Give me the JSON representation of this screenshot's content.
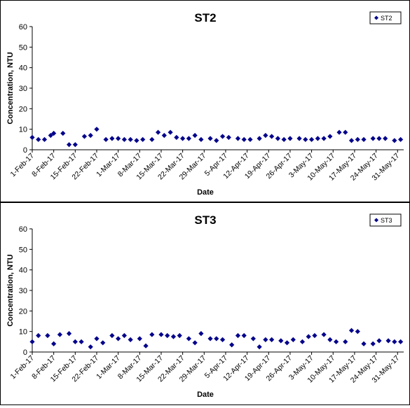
{
  "chart_data": [
    {
      "type": "scatter",
      "title": "ST2",
      "xlabel": "Date",
      "ylabel": "Concentration, NTU",
      "ylim": [
        0,
        60
      ],
      "yticks": [
        "0",
        "10",
        "20",
        "30",
        "40",
        "50",
        "60"
      ],
      "xlim": [
        "2017-02-01",
        "2017-06-02"
      ],
      "xtick_dates": [
        "2017-02-01",
        "2017-02-08",
        "2017-02-15",
        "2017-02-22",
        "2017-03-01",
        "2017-03-08",
        "2017-03-15",
        "2017-03-22",
        "2017-03-29",
        "2017-04-05",
        "2017-04-12",
        "2017-04-19",
        "2017-04-26",
        "2017-05-03",
        "2017-05-10",
        "2017-05-17",
        "2017-05-24",
        "2017-05-31"
      ],
      "xtick_labels": [
        "1-Feb-17",
        "8-Feb-17",
        "15-Feb-17",
        "22-Feb-17",
        "1-Mar-17",
        "8-Mar-17",
        "15-Mar-17",
        "22-Mar-17",
        "29-Mar-17",
        "5-Apr-17",
        "12-Apr-17",
        "19-Apr-17",
        "26-Apr-17",
        "3-May-17",
        "10-May-17",
        "17-May-17",
        "24-May-17",
        "31-May-17"
      ],
      "legend": {
        "position": "top-right",
        "entries": [
          "ST2"
        ]
      },
      "marker_color": "#00008B",
      "grid": false,
      "series": [
        {
          "name": "ST2",
          "x": [
            "2017-02-01",
            "2017-02-03",
            "2017-02-05",
            "2017-02-07",
            "2017-02-08",
            "2017-02-11",
            "2017-02-13",
            "2017-02-15",
            "2017-02-18",
            "2017-02-20",
            "2017-02-22",
            "2017-02-25",
            "2017-02-27",
            "2017-03-01",
            "2017-03-03",
            "2017-03-05",
            "2017-03-07",
            "2017-03-09",
            "2017-03-12",
            "2017-03-14",
            "2017-03-16",
            "2017-03-18",
            "2017-03-20",
            "2017-03-22",
            "2017-03-24",
            "2017-03-26",
            "2017-03-28",
            "2017-03-31",
            "2017-04-02",
            "2017-04-04",
            "2017-04-06",
            "2017-04-09",
            "2017-04-11",
            "2017-04-13",
            "2017-04-16",
            "2017-04-18",
            "2017-04-20",
            "2017-04-22",
            "2017-04-24",
            "2017-04-26",
            "2017-04-29",
            "2017-05-01",
            "2017-05-03",
            "2017-05-05",
            "2017-05-07",
            "2017-05-09",
            "2017-05-12",
            "2017-05-14",
            "2017-05-16",
            "2017-05-18",
            "2017-05-20",
            "2017-05-23",
            "2017-05-25",
            "2017-05-27",
            "2017-05-30",
            "2017-06-01"
          ],
          "y": [
            6.0,
            5.0,
            5.0,
            7.0,
            8.0,
            8.0,
            2.5,
            2.5,
            6.5,
            7.0,
            10.0,
            5.0,
            5.5,
            5.5,
            5.0,
            5.0,
            4.5,
            5.0,
            5.0,
            8.5,
            7.0,
            8.5,
            6.0,
            5.5,
            5.5,
            7.0,
            5.0,
            5.5,
            4.5,
            6.5,
            6.0,
            5.5,
            5.0,
            5.0,
            5.5,
            7.0,
            6.5,
            5.5,
            5.0,
            5.5,
            5.5,
            5.0,
            5.0,
            5.5,
            5.5,
            6.5,
            8.5,
            8.5,
            4.5,
            5.0,
            5.0,
            5.5,
            5.5,
            5.5,
            4.5,
            5.0
          ]
        }
      ]
    },
    {
      "type": "scatter",
      "title": "ST3",
      "xlabel": "Date",
      "ylabel": "Concentration, NTU",
      "ylim": [
        0,
        60
      ],
      "yticks": [
        "0",
        "10",
        "20",
        "30",
        "40",
        "50",
        "60"
      ],
      "xlim": [
        "2017-02-01",
        "2017-06-02"
      ],
      "xtick_dates": [
        "2017-02-01",
        "2017-02-08",
        "2017-02-15",
        "2017-02-22",
        "2017-03-01",
        "2017-03-08",
        "2017-03-15",
        "2017-03-22",
        "2017-03-29",
        "2017-04-05",
        "2017-04-12",
        "2017-04-19",
        "2017-04-26",
        "2017-05-03",
        "2017-05-10",
        "2017-05-17",
        "2017-05-24",
        "2017-05-31"
      ],
      "xtick_labels": [
        "1-Feb-17",
        "8-Feb-17",
        "15-Feb-17",
        "22-Feb-17",
        "1-Mar-17",
        "8-Mar-17",
        "15-Mar-17",
        "22-Mar-17",
        "29-Mar-17",
        "5-Apr-17",
        "12-Apr-17",
        "19-Apr-17",
        "26-Apr-17",
        "3-May-17",
        "10-May-17",
        "17-May-17",
        "24-May-17",
        "31-May-17"
      ],
      "legend": {
        "position": "top-right",
        "entries": [
          "ST3"
        ]
      },
      "marker_color": "#00008B",
      "grid": false,
      "series": [
        {
          "name": "ST3",
          "x": [
            "2017-02-01",
            "2017-02-03",
            "2017-02-06",
            "2017-02-08",
            "2017-02-10",
            "2017-02-13",
            "2017-02-15",
            "2017-02-17",
            "2017-02-20",
            "2017-02-22",
            "2017-02-24",
            "2017-02-27",
            "2017-03-01",
            "2017-03-03",
            "2017-03-05",
            "2017-03-08",
            "2017-03-10",
            "2017-03-12",
            "2017-03-15",
            "2017-03-17",
            "2017-03-19",
            "2017-03-21",
            "2017-03-24",
            "2017-03-26",
            "2017-03-28",
            "2017-03-31",
            "2017-04-02",
            "2017-04-04",
            "2017-04-07",
            "2017-04-09",
            "2017-04-11",
            "2017-04-14",
            "2017-04-16",
            "2017-04-18",
            "2017-04-20",
            "2017-04-23",
            "2017-04-25",
            "2017-04-27",
            "2017-04-30",
            "2017-05-02",
            "2017-05-04",
            "2017-05-07",
            "2017-05-09",
            "2017-05-11",
            "2017-05-14",
            "2017-05-16",
            "2017-05-18",
            "2017-05-20",
            "2017-05-23",
            "2017-05-25",
            "2017-05-28",
            "2017-05-30",
            "2017-06-01"
          ],
          "y": [
            5.0,
            8.0,
            8.0,
            4.0,
            8.5,
            9.0,
            5.0,
            5.0,
            2.5,
            6.5,
            4.5,
            8.0,
            6.5,
            8.0,
            6.0,
            6.5,
            3.0,
            8.5,
            8.5,
            8.0,
            7.5,
            8.0,
            6.5,
            4.5,
            9.0,
            6.5,
            6.5,
            6.0,
            3.5,
            8.0,
            8.0,
            6.5,
            2.5,
            6.0,
            6.0,
            5.5,
            4.5,
            6.0,
            5.0,
            7.5,
            8.0,
            8.5,
            6.0,
            5.0,
            5.0,
            10.5,
            10.0,
            4.0,
            4.0,
            5.5,
            5.5,
            5.0,
            5.0
          ]
        }
      ]
    }
  ]
}
